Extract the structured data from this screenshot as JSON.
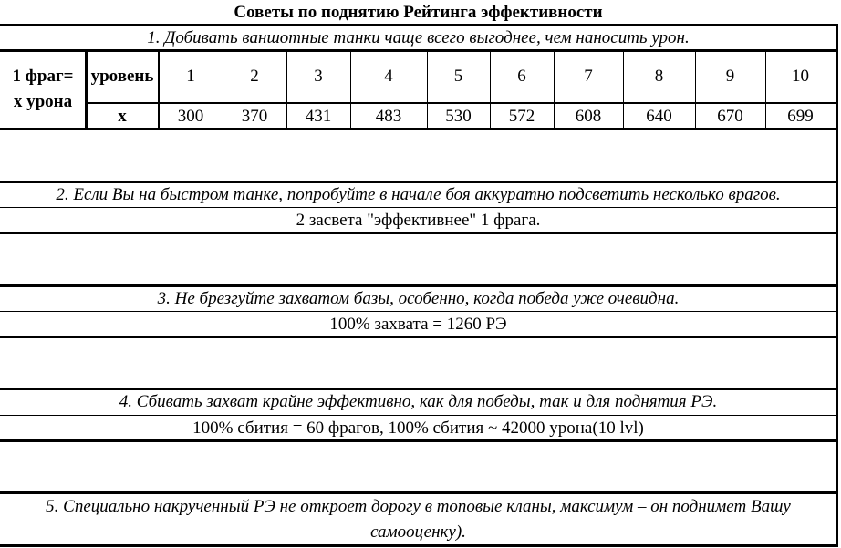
{
  "title": "Советы по поднятию Рейтинга эффективности",
  "tips": [
    {
      "heading": "1. Добивать ваншотные танки чаще всего выгоднее, чем наносить урон."
    },
    {
      "heading": "2. Если Вы на быстром танке, попробуйте в начале боя аккуратно подсветить несколько врагов.",
      "detail": "2 засвета \"эффективнее\" 1 фрага."
    },
    {
      "heading": "3. Не брезгуйте захватом базы, особенно, когда победа уже очевидна.",
      "detail": "100% захвата = 1260 РЭ"
    },
    {
      "heading": "4. Сбивать захват крайне эффективно, как для победы, так и для поднятия РЭ.",
      "detail": "100% сбития = 60 фрагов, 100% сбития ~ 42000 урона(10 lvl)"
    },
    {
      "heading_line1": "5. Специально накрученный РЭ не откроет дорогу в топовые кланы, максимум – он поднимет Вашу",
      "heading_line2": "самооценку)."
    }
  ],
  "frag_table": {
    "row_label_line1": "1 фраг=",
    "row_label_line2": "x урона",
    "level_header": "уровень",
    "value_header": "x",
    "levels": [
      "1",
      "2",
      "3",
      "4",
      "5",
      "6",
      "7",
      "8",
      "9",
      "10"
    ],
    "values": [
      "300",
      "370",
      "431",
      "483",
      "530",
      "572",
      "608",
      "640",
      "670",
      "699"
    ]
  }
}
